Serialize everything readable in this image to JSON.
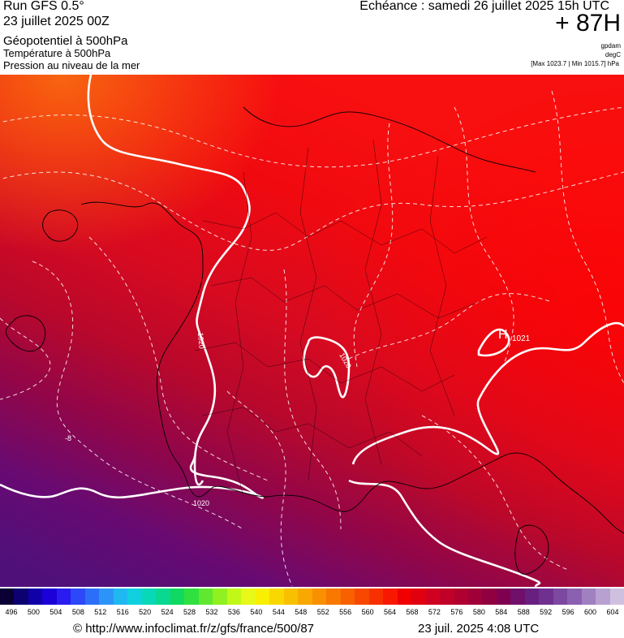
{
  "header": {
    "run": "Run GFS 0.5°",
    "run_date": "23 juillet 2025 00Z",
    "field_1": "Géopotentiel à 500hPa",
    "field_2": "Température à 500hPa",
    "field_3": "Pression au niveau de la mer",
    "echeance": "Echéance : samedi 26 juillet 2025 15h UTC",
    "lead": "+ 87H",
    "unit_1": "gpdam",
    "unit_2": "degC",
    "maxmin": "[Max 1023.7 | Min 1015.7] hPa"
  },
  "map": {
    "labels": {
      "iso_1020_a": "1020",
      "iso_1020_b": "1020",
      "iso_1020_c": "1020",
      "high_marker": "H",
      "high_value": "1021",
      "temp_label": "-8"
    }
  },
  "scale": {
    "ticks": [
      "496",
      "500",
      "504",
      "508",
      "512",
      "516",
      "520",
      "524",
      "528",
      "532",
      "536",
      "540",
      "544",
      "548",
      "552",
      "556",
      "560",
      "564",
      "568",
      "572",
      "576",
      "580",
      "584",
      "588",
      "592",
      "596",
      "600",
      "604"
    ],
    "colors": [
      "#0b0033",
      "#0d0070",
      "#1000a8",
      "#1c00d8",
      "#2a1cf0",
      "#2c48f8",
      "#2c6ef8",
      "#2c94f8",
      "#20b8f0",
      "#10d0e0",
      "#08d8b8",
      "#08d890",
      "#10d860",
      "#30e040",
      "#60e830",
      "#90f020",
      "#c0f818",
      "#e8f818",
      "#f8f000",
      "#f8d800",
      "#f8c000",
      "#f8a800",
      "#f89000",
      "#f87800",
      "#f86000",
      "#f84800",
      "#f83000",
      "#f81800",
      "#f00000",
      "#e00010",
      "#d00020",
      "#c00028",
      "#b00030",
      "#a00038",
      "#900040",
      "#800050",
      "#70106a",
      "#682080",
      "#703090",
      "#7c48a0",
      "#8c60b0",
      "#a080c0",
      "#b8a0d0",
      "#d0c0e0"
    ]
  },
  "footer": {
    "url": "© http://www.infoclimat.fr/z/gfs/france/500/87",
    "date": "23 juil. 2025  4:08 UTC"
  }
}
